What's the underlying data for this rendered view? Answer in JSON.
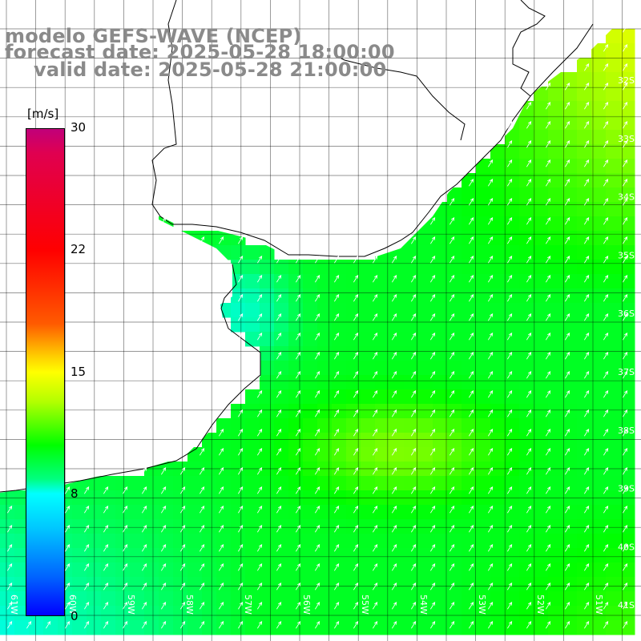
{
  "title": {
    "line1": "modelo GEFS-WAVE (NCEP)",
    "line2": "forecast date: 2025-05-28 18:00:00",
    "line3": "valid date: 2025-05-28 21:00:00"
  },
  "legend": {
    "unit": "[m/s]",
    "ticks": [
      "30",
      "22",
      "15",
      "8",
      "0"
    ],
    "min": 0,
    "max": 30
  },
  "map": {
    "lat_labels": [
      "32S",
      "33S",
      "34S",
      "35S",
      "36S",
      "37S",
      "38S",
      "39S",
      "40S",
      "41S"
    ],
    "lon_labels": [
      "61W",
      "60W",
      "59W",
      "58W",
      "57W",
      "56W",
      "55W",
      "54W",
      "53W",
      "52W",
      "51W"
    ],
    "lat_range": [
      -41.3,
      -30.8
    ],
    "lon_range": [
      -61.5,
      -50.8
    ],
    "grid_step_deg": 0.5,
    "grid_line_color": "#000000",
    "land_color": "#ffffff",
    "coast_color": "#000000",
    "arrow_color": "#ffffff",
    "field_description": "wind speed (m/s) with direction arrows over the ocean"
  }
}
